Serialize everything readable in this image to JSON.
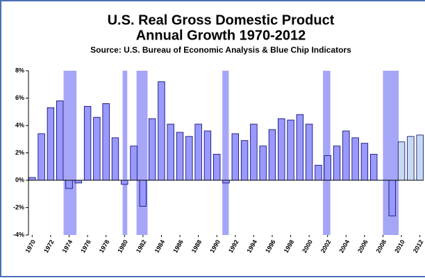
{
  "chart_data": {
    "type": "bar",
    "title": "U.S. Real Gross Domestic Product",
    "subtitle": "Annual Growth 1970-2012",
    "source": "Source: U.S. Bureau of Economic Analysis & Blue Chip Indicators",
    "x": [
      1970,
      1971,
      1972,
      1973,
      1974,
      1975,
      1976,
      1977,
      1978,
      1979,
      1980,
      1981,
      1982,
      1983,
      1984,
      1985,
      1986,
      1987,
      1988,
      1989,
      1990,
      1991,
      1992,
      1993,
      1994,
      1995,
      1996,
      1997,
      1998,
      1999,
      2000,
      2001,
      2002,
      2003,
      2004,
      2005,
      2006,
      2007,
      2008,
      2009,
      2010,
      2011,
      2012
    ],
    "series": [
      {
        "values": [
          0.2,
          3.4,
          5.3,
          5.8,
          -0.6,
          -0.2,
          5.4,
          4.6,
          5.6,
          3.1,
          -0.3,
          2.5,
          -1.9,
          4.5,
          7.2,
          4.1,
          3.5,
          3.2,
          4.1,
          3.6,
          1.9,
          -0.2,
          3.4,
          2.9,
          4.1,
          2.5,
          3.7,
          4.5,
          4.4,
          4.8,
          4.1,
          1.1,
          1.8,
          2.5,
          3.6,
          3.1,
          2.7,
          1.9,
          0,
          -2.6,
          2.8,
          3.2,
          3.3
        ],
        "colors": [
          "#9999ff",
          "#9999ff",
          "#9999ff",
          "#9999ff",
          "#9999ff",
          "#9999ff",
          "#9999ff",
          "#9999ff",
          "#9999ff",
          "#9999ff",
          "#9999ff",
          "#9999ff",
          "#9999ff",
          "#9999ff",
          "#9999ff",
          "#9999ff",
          "#9999ff",
          "#9999ff",
          "#9999ff",
          "#9999ff",
          "#9999ff",
          "#9999ff",
          "#9999ff",
          "#9999ff",
          "#9999ff",
          "#9999ff",
          "#9999ff",
          "#9999ff",
          "#9999ff",
          "#9999ff",
          "#9999ff",
          "#9999ff",
          "#9999ff",
          "#9999ff",
          "#9999ff",
          "#9999ff",
          "#9999ff",
          "#9999ff",
          "#9999ff",
          "#9999ff",
          "#c6d9f1",
          "#c6d9f1",
          "#c6d9f1"
        ]
      }
    ],
    "shaded_ranges": [
      [
        1973.4,
        1974.8
      ],
      [
        1979.8,
        1980.3
      ],
      [
        1981.3,
        1982.5
      ],
      [
        1990.6,
        1991.3
      ],
      [
        2001.5,
        2002.3
      ],
      [
        2008.0,
        2009.7
      ]
    ],
    "shade_color": "#a6a6f8",
    "xlim": [
      1969.6,
      2012.4
    ],
    "xticks": [
      1970,
      1972,
      1974,
      1976,
      1978,
      1980,
      1982,
      1984,
      1986,
      1988,
      1990,
      1992,
      1994,
      1996,
      1998,
      2000,
      2002,
      2004,
      2006,
      2008,
      2010,
      2012
    ],
    "ylim": [
      -4,
      8
    ],
    "yticks": [
      {
        "value": -4,
        "label": "-4%"
      },
      {
        "value": -2,
        "label": "-2%"
      },
      {
        "value": 0,
        "label": "0%"
      },
      {
        "value": 2,
        "label": "2%"
      },
      {
        "value": 4,
        "label": "4%"
      },
      {
        "value": 6,
        "label": "6%"
      },
      {
        "value": 8,
        "label": "8%"
      }
    ],
    "grid": false
  }
}
